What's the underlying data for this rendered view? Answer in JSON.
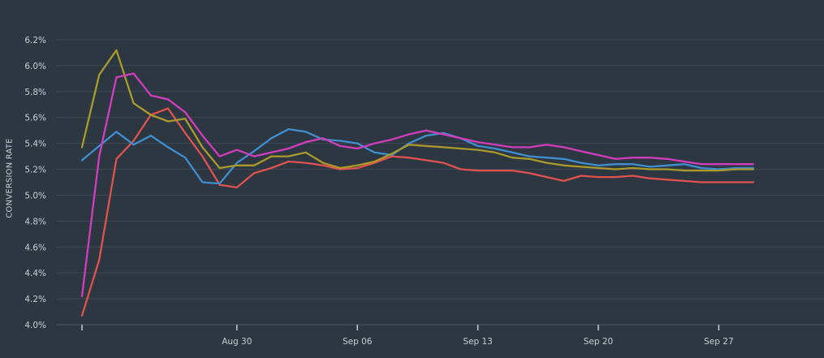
{
  "chart_data": {
    "type": "line",
    "title": "",
    "xlabel": "",
    "ylabel": "CONVERSION RATE",
    "ylim": [
      4.0,
      6.2
    ],
    "y_ticks": [
      4.0,
      4.2,
      4.4,
      4.6,
      4.8,
      5.0,
      5.2,
      5.4,
      5.6,
      5.8,
      6.0,
      6.2
    ],
    "y_tick_labels": [
      "4.0%",
      "4.2%",
      "4.4%",
      "4.6%",
      "4.8%",
      "5.0%",
      "5.2%",
      "5.4%",
      "5.6%",
      "5.8%",
      "6.0%",
      "6.2%"
    ],
    "x": [
      "Aug 21",
      "Aug 22",
      "Aug 23",
      "Aug 24",
      "Aug 25",
      "Aug 26",
      "Aug 27",
      "Aug 28",
      "Aug 29",
      "Aug 30",
      "Aug 31",
      "Sep 01",
      "Sep 02",
      "Sep 03",
      "Sep 04",
      "Sep 05",
      "Sep 06",
      "Sep 07",
      "Sep 08",
      "Sep 09",
      "Sep 10",
      "Sep 11",
      "Sep 12",
      "Sep 13",
      "Sep 14",
      "Sep 15",
      "Sep 16",
      "Sep 17",
      "Sep 18",
      "Sep 19",
      "Sep 20",
      "Sep 21",
      "Sep 22",
      "Sep 23",
      "Sep 24",
      "Sep 25",
      "Sep 26",
      "Sep 27",
      "Sep 28",
      "Sep 29"
    ],
    "x_tick_labels": [
      "Aug 30",
      "Sep 06",
      "Sep 13",
      "Sep 20",
      "Sep 27"
    ],
    "grid": true,
    "legend": "none",
    "series": [
      {
        "color": "#e0524f",
        "values": [
          4.07,
          4.5,
          5.28,
          5.42,
          5.62,
          5.67,
          5.48,
          5.3,
          5.08,
          5.06,
          5.17,
          5.21,
          5.26,
          5.25,
          5.23,
          5.2,
          5.21,
          5.25,
          5.3,
          5.29,
          5.27,
          5.25,
          5.2,
          5.19,
          5.19,
          5.19,
          5.17,
          5.14,
          5.11,
          5.15,
          5.14,
          5.14,
          5.15,
          5.13,
          5.12,
          5.11,
          5.1,
          5.1,
          5.1,
          5.1
        ]
      },
      {
        "color": "#3f8fd0",
        "values": [
          5.27,
          5.38,
          5.49,
          5.39,
          5.46,
          5.37,
          5.29,
          5.1,
          5.09,
          5.25,
          5.34,
          5.44,
          5.51,
          5.49,
          5.43,
          5.42,
          5.4,
          5.33,
          5.31,
          5.4,
          5.46,
          5.48,
          5.44,
          5.38,
          5.36,
          5.33,
          5.3,
          5.29,
          5.28,
          5.25,
          5.23,
          5.24,
          5.24,
          5.22,
          5.23,
          5.24,
          5.21,
          5.2,
          5.21,
          5.21
        ]
      },
      {
        "color": "#a99a2b",
        "values": [
          5.37,
          5.93,
          6.12,
          5.71,
          5.62,
          5.57,
          5.59,
          5.37,
          5.21,
          5.23,
          5.23,
          5.3,
          5.3,
          5.33,
          5.25,
          5.21,
          5.23,
          5.26,
          5.32,
          5.39,
          5.38,
          5.37,
          5.36,
          5.35,
          5.33,
          5.29,
          5.28,
          5.25,
          5.23,
          5.22,
          5.21,
          5.2,
          5.21,
          5.2,
          5.2,
          5.19,
          5.19,
          5.19,
          5.2,
          5.2
        ]
      },
      {
        "color": "#d13dbd",
        "values": [
          4.22,
          5.3,
          5.91,
          5.94,
          5.77,
          5.74,
          5.64,
          5.46,
          5.3,
          5.35,
          5.3,
          5.33,
          5.36,
          5.41,
          5.44,
          5.38,
          5.36,
          5.4,
          5.43,
          5.47,
          5.5,
          5.47,
          5.44,
          5.41,
          5.39,
          5.37,
          5.37,
          5.39,
          5.37,
          5.34,
          5.31,
          5.28,
          5.29,
          5.29,
          5.28,
          5.26,
          5.24,
          5.24,
          5.24,
          5.24
        ]
      }
    ]
  }
}
